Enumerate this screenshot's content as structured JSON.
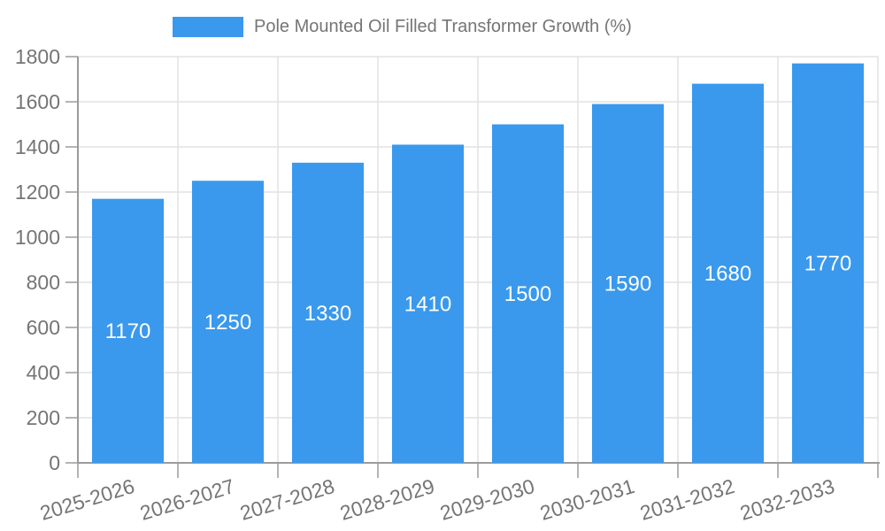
{
  "page": {
    "background": "#ffffff"
  },
  "legend": {
    "label": "Pole Mounted Oil Filled Transformer Growth (%)"
  },
  "colors": {
    "bar": "#3a99ec",
    "axis_line": "#9b9b9b",
    "grid_line": "#e2e2e2",
    "tick_label": "#757575",
    "value_label": "#ffffff",
    "legend_text": "#757575"
  },
  "chart_data": {
    "type": "bar",
    "title": "Pole Mounted Oil Filled Transformer Growth (%)",
    "categories": [
      "2025-2026",
      "2026-2027",
      "2027-2028",
      "2028-2029",
      "2029-2030",
      "2030-2031",
      "2031-2032",
      "2032-2033"
    ],
    "values": [
      1170,
      1250,
      1330,
      1410,
      1500,
      1590,
      1680,
      1770
    ],
    "xlabel": "",
    "ylabel": "",
    "ylim": [
      0,
      1800
    ],
    "ytick_step": 200,
    "yticks": [
      0,
      200,
      400,
      600,
      800,
      1000,
      1200,
      1400,
      1600,
      1800
    ],
    "grid": true,
    "legend_position": "top",
    "bar_value_label_position": "inside-middle",
    "x_label_rotation_deg": -17
  }
}
